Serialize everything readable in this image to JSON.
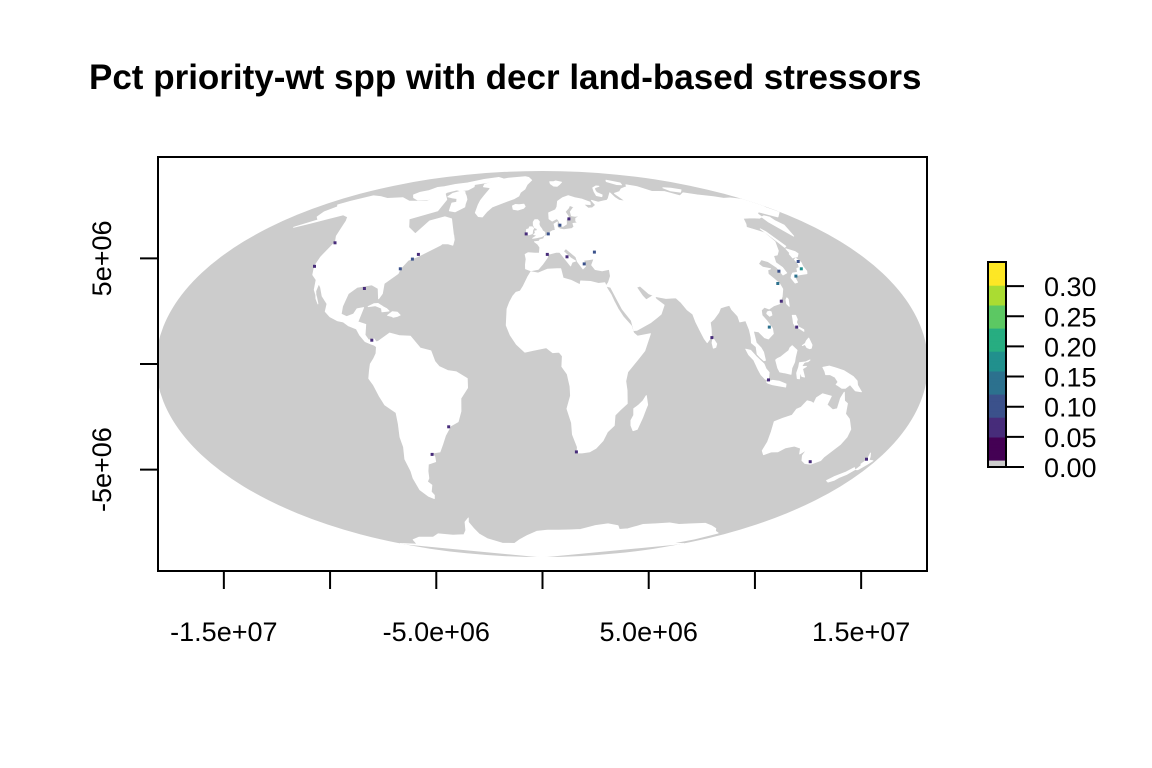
{
  "title": "Pct priority-wt spp with decr land-based stressors",
  "colors": {
    "ocean": "#cccccc",
    "land": "#ffffff",
    "na": "#cccccc",
    "frame": "#000000",
    "palette": [
      "#440154",
      "#472c7a",
      "#3b518b",
      "#2c718e",
      "#21908d",
      "#27ad81",
      "#5cc863",
      "#aadc32",
      "#fde725"
    ]
  },
  "chart_data": {
    "type": "raster-map",
    "projection": "mollweide",
    "x_axis": {
      "ticks": [
        -20000000,
        -15000000,
        -10000000,
        -5000000,
        0,
        5000000,
        10000000,
        15000000
      ],
      "labels": [
        {
          "value": -15000000,
          "text": "-1.5e+07"
        },
        {
          "value": -5000000,
          "text": "-5.0e+06"
        },
        {
          "value": 5000000,
          "text": "5.0e+06"
        },
        {
          "value": 15000000,
          "text": "1.5e+07"
        }
      ],
      "range": [
        -18100000,
        18100000
      ]
    },
    "y_axis": {
      "ticks": [
        -5000000,
        0,
        5000000
      ],
      "labels": [
        {
          "value": 5000000,
          "text": "5e+06"
        },
        {
          "value": -5000000,
          "text": "-5e+06"
        }
      ],
      "range": [
        -9800000,
        9800000
      ]
    },
    "legend": {
      "placement": "right",
      "min": 0,
      "max": 0.34,
      "labels": [
        {
          "value": 0.0,
          "text": "0.00"
        },
        {
          "value": 0.05,
          "text": "0.05"
        },
        {
          "value": 0.1,
          "text": "0.10"
        },
        {
          "value": 0.15,
          "text": "0.15"
        },
        {
          "value": 0.2,
          "text": "0.20"
        },
        {
          "value": 0.25,
          "text": "0.25"
        },
        {
          "value": 0.3,
          "text": "0.30"
        }
      ]
    },
    "highlights": [
      {
        "lon": -72,
        "lat": 41,
        "value": 0.08
      },
      {
        "lon": -70,
        "lat": 43,
        "value": 0.05
      },
      {
        "lon": -76,
        "lat": 37,
        "value": 0.1
      },
      {
        "lon": -124,
        "lat": 48,
        "value": 0.06
      },
      {
        "lon": -123,
        "lat": 38,
        "value": 0.04
      },
      {
        "lon": -10,
        "lat": 52,
        "value": 0.06
      },
      {
        "lon": 4,
        "lat": 52,
        "value": 0.08
      },
      {
        "lon": 12,
        "lat": 56,
        "value": 0.1
      },
      {
        "lon": 19,
        "lat": 59,
        "value": 0.05
      },
      {
        "lon": 3,
        "lat": 43,
        "value": 0.07
      },
      {
        "lon": 14,
        "lat": 42,
        "value": 0.06
      },
      {
        "lon": 23,
        "lat": 39,
        "value": 0.09
      },
      {
        "lon": 30,
        "lat": 44,
        "value": 0.08
      },
      {
        "lon": 121,
        "lat": 31,
        "value": 0.12
      },
      {
        "lon": 126,
        "lat": 36,
        "value": 0.1
      },
      {
        "lon": 133,
        "lat": 34,
        "value": 0.14
      },
      {
        "lon": 139,
        "lat": 37,
        "value": 0.16
      },
      {
        "lon": 141,
        "lat": 40,
        "value": 0.08
      },
      {
        "lon": 118,
        "lat": 24,
        "value": 0.06
      },
      {
        "lon": 108,
        "lat": 14,
        "value": 0.12
      },
      {
        "lon": 121,
        "lat": 14,
        "value": 0.04
      },
      {
        "lon": 106,
        "lat": -6,
        "value": 0.05
      },
      {
        "lon": 145,
        "lat": -38,
        "value": 0.05
      },
      {
        "lon": 174,
        "lat": -37,
        "value": 0.04
      },
      {
        "lon": -46,
        "lat": -24,
        "value": 0.05
      },
      {
        "lon": -58,
        "lat": -35,
        "value": 0.06
      },
      {
        "lon": 18,
        "lat": -34,
        "value": 0.04
      },
      {
        "lon": 80,
        "lat": 10,
        "value": 0.05
      },
      {
        "lon": -90,
        "lat": 29,
        "value": 0.07
      },
      {
        "lon": -80,
        "lat": 9,
        "value": 0.05
      }
    ]
  }
}
